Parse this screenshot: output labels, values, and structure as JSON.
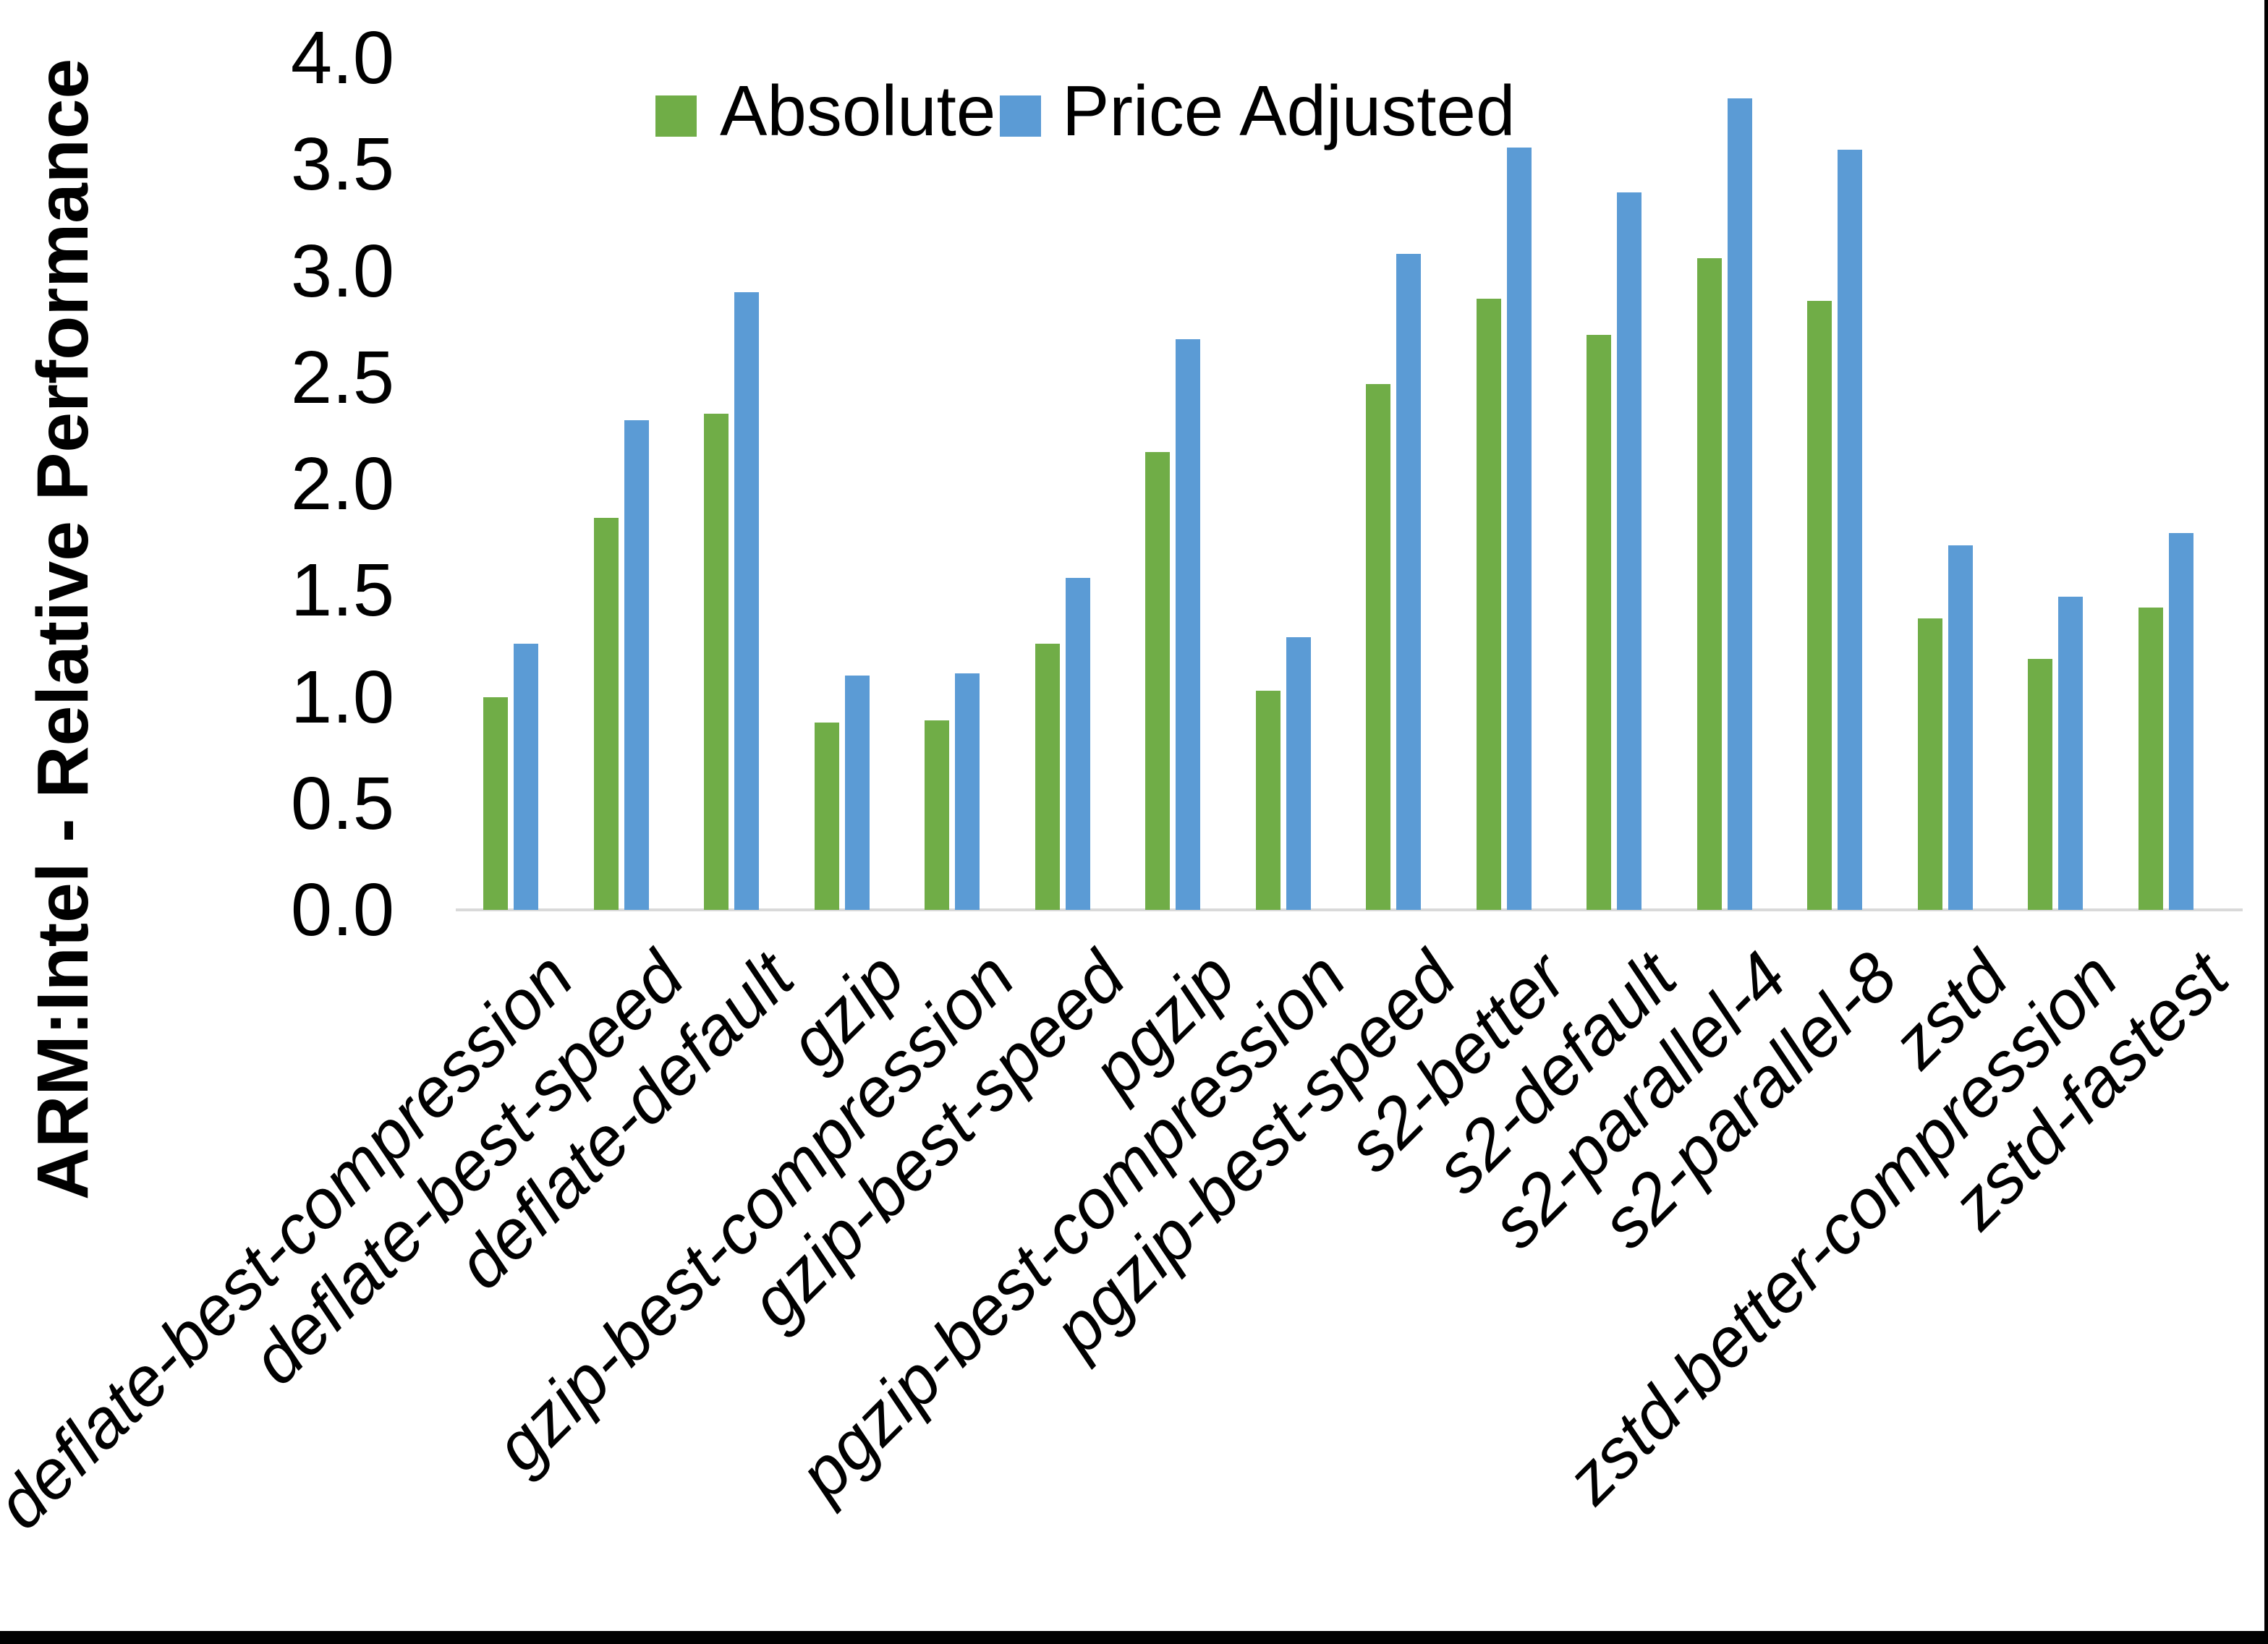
{
  "chart_data": {
    "type": "bar",
    "title": "",
    "xlabel": "",
    "ylabel": "ARM:Intel - Relative Performance",
    "ylim": [
      0.0,
      4.0
    ],
    "grid": false,
    "legend_position": "top-center",
    "yticks": [
      {
        "label": "0.0",
        "value": 0.0
      },
      {
        "label": "0.5",
        "value": 0.5
      },
      {
        "label": "1.0",
        "value": 1.0
      },
      {
        "label": "1.5",
        "value": 1.5
      },
      {
        "label": "2.0",
        "value": 2.0
      },
      {
        "label": "2.5",
        "value": 2.5
      },
      {
        "label": "3.0",
        "value": 3.0
      },
      {
        "label": "3.5",
        "value": 3.5
      },
      {
        "label": "4.0",
        "value": 4.0
      }
    ],
    "categories": [
      "deflate-best-compression",
      "deflate-best-speed",
      "deflate-default",
      "gzip",
      "gzip-best-compression",
      "gzip-best-speed",
      "pgzip",
      "pgzip-best-compression",
      "pgzip-best-speed",
      "s2-better",
      "s2-default",
      "s2-parallel-4",
      "s2-parallel-8",
      "zstd",
      "zstd-better-compression",
      "zstd-fastest"
    ],
    "series": [
      {
        "name": "Absolute",
        "color": "#70AD47",
        "values": [
          1.0,
          1.84,
          2.33,
          0.88,
          0.89,
          1.25,
          2.15,
          1.03,
          2.47,
          2.87,
          2.7,
          3.06,
          2.86,
          1.37,
          1.18,
          1.42
        ]
      },
      {
        "name": "Price Adjusted",
        "color": "#5B9BD5",
        "values": [
          1.25,
          2.3,
          2.9,
          1.1,
          1.11,
          1.56,
          2.68,
          1.28,
          3.08,
          3.58,
          3.37,
          3.81,
          3.57,
          1.71,
          1.47,
          1.77
        ]
      }
    ]
  }
}
